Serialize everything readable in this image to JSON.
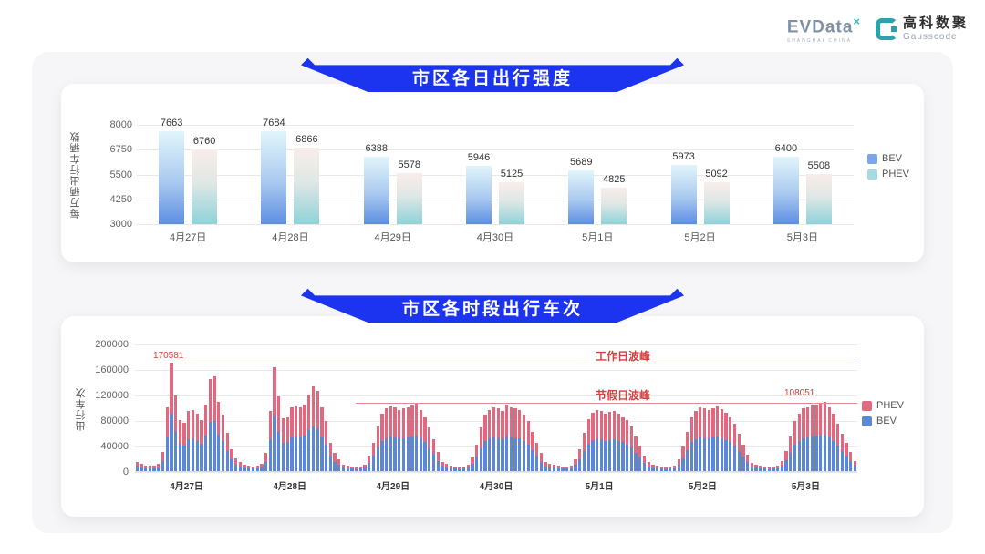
{
  "header": {
    "evdata_name": "EVData",
    "evdata_sup": "×",
    "evdata_subtitle": "SHANGHAI CHINA",
    "gausscode_cn": "高科数聚",
    "gausscode_en": "Gausscode"
  },
  "banners": {
    "daily_intensity": "市区各日出行强度",
    "hourly_trips": "市区各时段出行车次"
  },
  "colors": {
    "banner_blue": "#1c34f0",
    "grouped_bev_top": "#e2f5fb",
    "grouped_bev_bottom": "#5d8ee3",
    "grouped_phev_top": "#f9edea",
    "grouped_phev_bottom": "#8fd2d9",
    "legend_bev_blue": "#7aa6ec",
    "legend_phev_teal": "#a6dbe1",
    "stack_bev_blue": "#5b87d6",
    "stack_phev_pink": "#e0697f",
    "annotation_red": "#d94040",
    "annotation_line_red": "#e98b8b"
  },
  "chart_data": [
    {
      "type": "bar",
      "title": "市区各日出行强度",
      "ylabel": "每万辆出行车辆数",
      "categories": [
        "4月27日",
        "4月28日",
        "4月29日",
        "4月30日",
        "5月1日",
        "5月2日",
        "5月3日"
      ],
      "series": [
        {
          "name": "BEV",
          "values": [
            7663,
            7684,
            6388,
            5946,
            5689,
            5973,
            6400
          ]
        },
        {
          "name": "PHEV",
          "values": [
            6760,
            6866,
            5578,
            5125,
            4825,
            5092,
            5508
          ]
        }
      ],
      "yticks": [
        3000,
        4250,
        5500,
        6750,
        8000
      ],
      "ylim": [
        3000,
        8000
      ],
      "grid": true,
      "legend": [
        "BEV",
        "PHEV"
      ],
      "legend_position": "right"
    },
    {
      "type": "stacked-bar",
      "title": "市区各时段出行车次",
      "ylabel": "出行车次",
      "categories": [
        "4月27日",
        "4月28日",
        "4月29日",
        "4月30日",
        "5月1日",
        "5月2日",
        "5月3日"
      ],
      "x_unit": "hour of day (24 bars per date)",
      "bev_share": 0.53,
      "hourly_totals": [
        [
          15000,
          12000,
          9000,
          8000,
          8000,
          12000,
          30000,
          100000,
          170581,
          119000,
          80000,
          76000,
          95000,
          96000,
          90000,
          80000,
          105000,
          145000,
          148000,
          108000,
          88000,
          60000,
          35000,
          20000
        ],
        [
          14000,
          10000,
          8000,
          7000,
          8000,
          12000,
          28000,
          95000,
          163000,
          117000,
          83000,
          85000,
          100000,
          102000,
          100000,
          105000,
          120000,
          133000,
          126000,
          100000,
          78000,
          45000,
          28000,
          18000
        ],
        [
          10000,
          8000,
          7000,
          6000,
          7000,
          10000,
          25000,
          45000,
          70000,
          90000,
          98000,
          102000,
          100000,
          96000,
          98000,
          100000,
          103000,
          106000,
          96000,
          85000,
          68000,
          50000,
          30000,
          15000
        ],
        [
          12000,
          9000,
          7000,
          6000,
          7000,
          10000,
          22000,
          42000,
          68000,
          88000,
          96000,
          100000,
          98000,
          95000,
          105000,
          100000,
          98000,
          96000,
          88000,
          78000,
          62000,
          45000,
          28000,
          14000
        ],
        [
          12000,
          10000,
          8000,
          7000,
          7000,
          9000,
          18000,
          35000,
          60000,
          82000,
          92000,
          96000,
          95000,
          90000,
          93000,
          95000,
          90000,
          85000,
          80000,
          70000,
          55000,
          40000,
          25000,
          14000
        ],
        [
          10000,
          8000,
          7000,
          6000,
          7000,
          9000,
          18000,
          38000,
          62000,
          85000,
          95000,
          100000,
          98000,
          96000,
          99000,
          102000,
          97000,
          92000,
          85000,
          75000,
          58000,
          42000,
          26000,
          13000
        ],
        [
          10000,
          8000,
          7000,
          6000,
          7000,
          9000,
          16000,
          32000,
          55000,
          78000,
          90000,
          98000,
          100000,
          103000,
          104000,
          106000,
          108051,
          100000,
          90000,
          75000,
          58000,
          45000,
          30000,
          16000
        ]
      ],
      "yticks": [
        0,
        40000,
        80000,
        120000,
        160000,
        200000
      ],
      "ylim": [
        0,
        200000
      ],
      "grid": true,
      "legend": [
        "PHEV",
        "BEV"
      ],
      "legend_position": "right",
      "annotations": [
        {
          "text": "工作日波峰",
          "value": 170581,
          "value_label": "170581"
        },
        {
          "text": "节假日波峰",
          "value": 108051,
          "value_label": "108051"
        }
      ]
    }
  ]
}
